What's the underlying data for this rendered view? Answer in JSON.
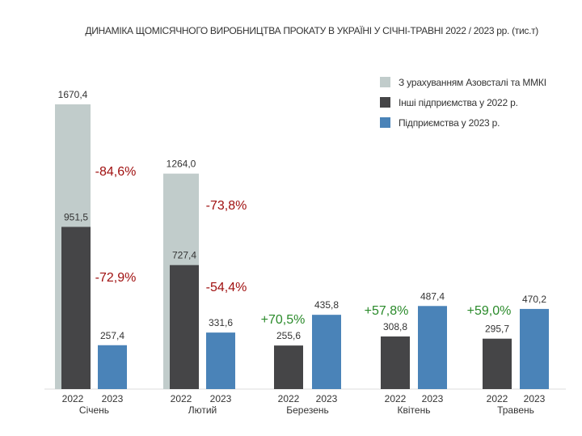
{
  "chart_data": {
    "type": "bar",
    "title": "ДИНАМІКА ЩОМІСЯЧНОГО ВИРОБНИЦТВА ПРОКАТУ В УКРАЇНІ У СІЧНІ-ТРАВНІ 2022 / 2023 рр. (тис.т)",
    "categories": [
      "Січень",
      "Лютий",
      "Березень",
      "Квітень",
      "Травень"
    ],
    "year_labels": [
      "2022",
      "2023"
    ],
    "series": [
      {
        "name": "З урахуванням Азовсталі та ММКІ",
        "color": "#c1cccb",
        "values": [
          1670.4,
          1264.0,
          null,
          null,
          null
        ],
        "labels": [
          "1670,4",
          "1264,0",
          null,
          null,
          null
        ]
      },
      {
        "name": "Інші підприємства у 2022 р.",
        "color": "#454547",
        "values": [
          951.5,
          727.4,
          255.6,
          308.8,
          295.7
        ],
        "labels": [
          "951,5",
          "727,4",
          "255,6",
          "308,8",
          "295,7"
        ]
      },
      {
        "name": "Підприємства у 2023 р.",
        "color": "#4a83b8",
        "values": [
          257.4,
          331.6,
          435.8,
          487.4,
          470.2
        ],
        "labels": [
          "257,4",
          "331,6",
          "435,8",
          "487,4",
          "470,2"
        ]
      }
    ],
    "annotations": [
      {
        "month": "Січень",
        "text": "-84,6%",
        "color": "#a01010",
        "vs": "total"
      },
      {
        "month": "Січень",
        "text": "-72,9%",
        "color": "#a01010",
        "vs": "other"
      },
      {
        "month": "Лютий",
        "text": "-73,8%",
        "color": "#a01010",
        "vs": "total"
      },
      {
        "month": "Лютий",
        "text": "-54,4%",
        "color": "#a01010",
        "vs": "other"
      },
      {
        "month": "Березень",
        "text": "+70,5%",
        "color": "#2a8a2a",
        "vs": "other"
      },
      {
        "month": "Квітень",
        "text": "+57,8%",
        "color": "#2a8a2a",
        "vs": "other"
      },
      {
        "month": "Травень",
        "text": "+59,0%",
        "color": "#2a8a2a",
        "vs": "other"
      }
    ],
    "ylim": [
      0,
      1700
    ],
    "grid": false,
    "legend": "top-right"
  }
}
